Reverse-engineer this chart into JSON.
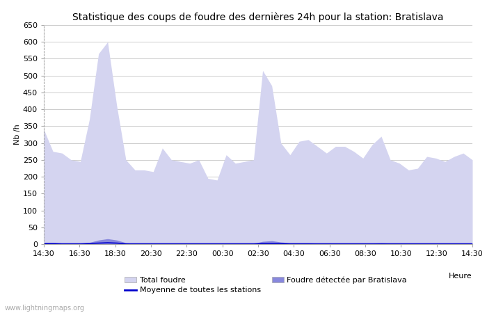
{
  "title": "Statistique des coups de foudre des dernières 24h pour la station: Bratislava",
  "ylabel": "Nb /h",
  "xlabel": "Heure",
  "watermark": "www.lightningmaps.org",
  "ylim": [
    0,
    650
  ],
  "yticks": [
    0,
    50,
    100,
    150,
    200,
    250,
    300,
    350,
    400,
    450,
    500,
    550,
    600,
    650
  ],
  "x_labels": [
    "14:30",
    "16:30",
    "18:30",
    "20:30",
    "22:30",
    "00:30",
    "02:30",
    "04:30",
    "06:30",
    "08:30",
    "10:30",
    "12:30",
    "14:30"
  ],
  "total_foudre_color": "#d4d4f0",
  "local_foudre_color": "#8888dd",
  "moyenne_color": "#0000cc",
  "background_color": "#ffffff",
  "grid_color": "#cccccc",
  "title_fontsize": 10,
  "axis_fontsize": 8,
  "legend_fontsize": 8,
  "total_values": [
    340,
    275,
    270,
    250,
    245,
    370,
    565,
    600,
    410,
    250,
    220,
    220,
    215,
    285,
    250,
    245,
    240,
    250,
    195,
    190,
    265,
    240,
    245,
    250,
    515,
    470,
    300,
    265,
    305,
    310,
    290,
    270,
    290,
    290,
    275,
    255,
    295,
    320,
    250,
    240,
    220,
    225,
    260,
    255,
    245,
    260,
    270,
    250
  ],
  "local_values": [
    5,
    3,
    2,
    2,
    2,
    5,
    12,
    16,
    12,
    4,
    2,
    2,
    2,
    3,
    2,
    2,
    2,
    2,
    2,
    2,
    2,
    2,
    2,
    2,
    8,
    10,
    6,
    4,
    4,
    4,
    3,
    3,
    3,
    3,
    3,
    3,
    3,
    4,
    3,
    3,
    2,
    2,
    3,
    3,
    3,
    3,
    3,
    3
  ],
  "moyenne_values": [
    2,
    2,
    1,
    1,
    1,
    2,
    3,
    4,
    3,
    1,
    1,
    1,
    1,
    1,
    1,
    1,
    1,
    1,
    1,
    1,
    1,
    1,
    1,
    1,
    2,
    2,
    2,
    1,
    1,
    1,
    1,
    1,
    1,
    1,
    1,
    1,
    1,
    1,
    1,
    1,
    1,
    1,
    1,
    1,
    1,
    1,
    1,
    1
  ]
}
